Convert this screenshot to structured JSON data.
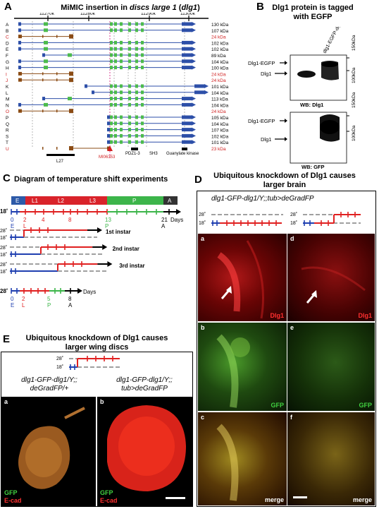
{
  "panelA": {
    "letter": "A",
    "title_pre": "MiMIC insertion in ",
    "title_ital": "discs large 1",
    "title_post": " (",
    "title_ital2": "dlg1",
    "title_end": ")",
    "ticks": [
      "11270k",
      "11280k",
      "11290k",
      "11300k"
    ],
    "rows": [
      "A",
      "B",
      "C",
      "D",
      "E",
      "F",
      "G",
      "H",
      "I",
      "J",
      "K",
      "L",
      "M",
      "N",
      "O",
      "P",
      "Q",
      "R",
      "S",
      "T",
      "U"
    ],
    "sizes": [
      "130 kDa",
      "107 kDa",
      "24 kDa",
      "102 kDa",
      "102 kDa",
      "89 kDa",
      "104 kDa",
      "100 kDa",
      "24 kDa",
      "24 kDa",
      "101 kDa",
      "104 kDa",
      "113 kDa",
      "104 kDa",
      "24 kDa",
      "105 kDa",
      "104 kDa",
      "107 kDa",
      "102 kDa",
      "101 kDa",
      "23 kDa"
    ],
    "red_rows": [
      "C",
      "I",
      "J",
      "O",
      "U"
    ],
    "label_l27": "L27",
    "label_mimic": "MI06353",
    "label_pdz": "PDZ1-3",
    "label_sh3": "SH3",
    "label_guk": "Guanylate kinase"
  },
  "panelB": {
    "letter": "B",
    "title": "Dlg1 protein is tagged with EGFP",
    "lane1": "y w",
    "lane2": "dlg1-EGFP-dlg1",
    "band_upper": "Dlg1-EGFP",
    "band_lower": "Dlg1",
    "mw1": "150kDa",
    "mw2": "100kDa",
    "wb1": "WB: Dlg1",
    "wb2": "WB: GFP"
  },
  "panelC": {
    "letter": "C",
    "title": "Diagram of temperature shift experiments",
    "stages": [
      "E",
      "L1",
      "L2",
      "L3",
      "P",
      "A"
    ],
    "temp_high": "28˚",
    "temp_low": "18˚",
    "days_top": [
      "0",
      "2",
      "4",
      "8",
      "13",
      "21"
    ],
    "day_labels_top": [
      "E",
      "L",
      "P",
      "A"
    ],
    "days_word": "Days",
    "instar1": "1st instar",
    "instar2": "2nd instar",
    "instar3": "3rd instar",
    "days_bottom": [
      "0",
      "2",
      "5",
      "8"
    ]
  },
  "panelD": {
    "letter": "D",
    "title": "Ubiquitous knockdown of Dlg1 causes larger brain",
    "genotype": "dlg1-GFP-dlg1/Y;;tub>deGradFP",
    "sub": [
      "a",
      "b",
      "c",
      "d",
      "e",
      "f"
    ],
    "label_dlg1": "Dlg1",
    "label_gfp": "GFP",
    "label_merge": "merge"
  },
  "panelE": {
    "letter": "E",
    "title": "Ubiquitous knockdown of Dlg1 causes larger wing discs",
    "geno_a": "dlg1-GFP-dlg1/Y;; deGradFP/+",
    "geno_b": "dlg1-GFP-dlg1/Y;; tub>deGradFP",
    "sub": [
      "a",
      "b"
    ],
    "label_gfp": "GFP",
    "label_ecad": "E-cad"
  },
  "colors": {
    "red_stage": "#d9232a",
    "green_stage": "#3cb54a",
    "blue_stage": "#2e5aa8",
    "blue_line": "#1f3fb0",
    "red_line": "#e02020",
    "grey_line": "#a0a0a0",
    "exon_green": "#4cbb4c",
    "exon_blue": "#2d4fa8",
    "exon_brown": "#8b4c15"
  }
}
